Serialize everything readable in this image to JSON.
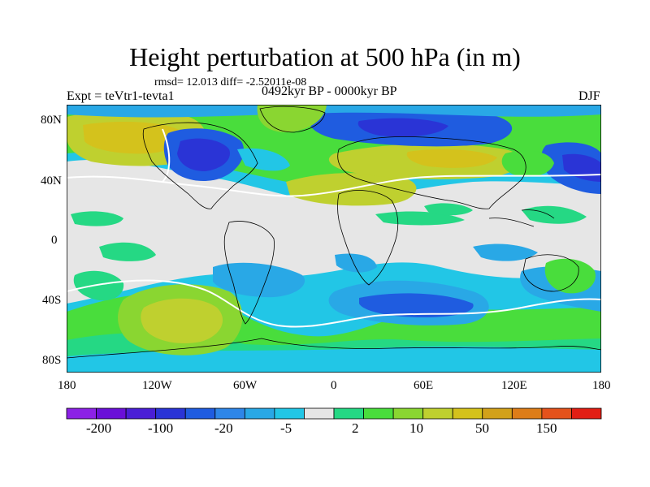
{
  "title": "Height perturbation at 500 hPa (in m)",
  "stats": "rmsd= 12.013 diff= -2.52011e-08",
  "experiment": "Expt = teVtr1-tevta1",
  "period": "0492kyr BP - 0000kyr BP",
  "season": "DJF",
  "lat_ticks": [
    "80N",
    "40N",
    "0",
    "40S",
    "80S"
  ],
  "lon_ticks": [
    "180",
    "120W",
    "60W",
    "0",
    "60E",
    "120E",
    "180"
  ],
  "colorbar": {
    "colors": [
      "#8c21e6",
      "#6a0fd8",
      "#4a1ed6",
      "#2a34d6",
      "#1f5ce0",
      "#2e86e8",
      "#29a8e6",
      "#22c6e6",
      "#e6e6e6",
      "#25d884",
      "#49dd3c",
      "#8ad631",
      "#bfd02f",
      "#d4c21c",
      "#d2a11a",
      "#dd7d18",
      "#e4521c",
      "#e21e14"
    ],
    "labels": [
      "-200",
      "-100",
      "-20",
      "-5",
      "2",
      "10",
      "50",
      "150"
    ]
  },
  "colors": {
    "neutral": "#e6e6e6",
    "deep_negative": "#2a34d6",
    "negative": "#1f5ce0",
    "mild_negative": "#29a8e6",
    "light_negative": "#22c6e6",
    "light_positive": "#25d884",
    "positive": "#49dd3c",
    "mid_positive": "#8ad631",
    "strong_positive": "#bfd02f",
    "high_positive": "#d4c21c"
  }
}
